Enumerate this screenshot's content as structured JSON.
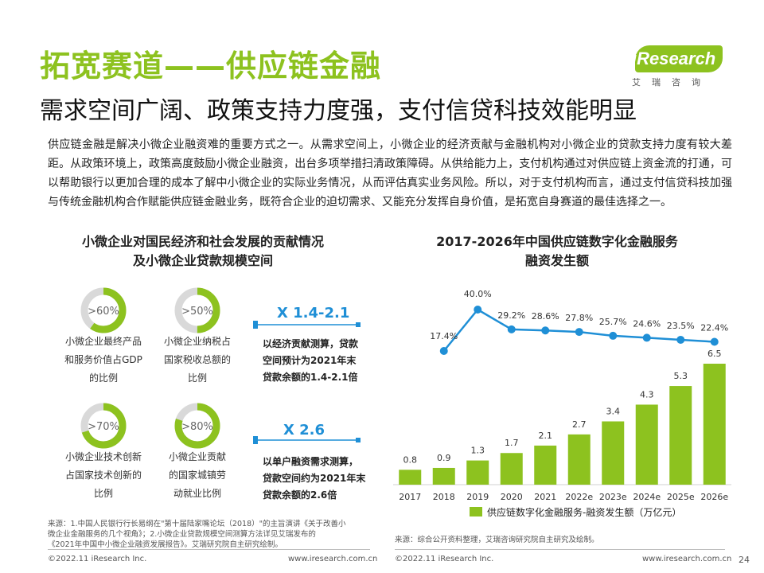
{
  "header": {
    "title": "拓宽赛道——供应链金融",
    "subtitle": "需求空间广阔、政策支持力度强，支付信贷科技效能明显",
    "logo_en": "iResearch",
    "logo_cn": "艾瑞咨询"
  },
  "intro": "供应链金融是解决小微企业融资难的重要方式之一。从需求空间上，小微企业的经济贡献与金融机构对小微企业的贷款支持力度有较大差距。从政策环境上，政策高度鼓励小微企业融资，出台多项举措扫清政策障碍。从供给能力上，支付机构通过对供应链上资金流的打通，可以帮助银行以更加合理的成本了解中小微企业的实际业务情况，从而评估真实业务风险。所以，对于支付机构而言，通过支付信贷科技加强与传统金融机构合作赋能供应链金融业务，既符合企业的迫切需求、又能充分发挥自身价值，是拓宽自身赛道的最佳选择之一。",
  "left": {
    "title_line1": "小微企业对国民经济和社会发展的贡献情况",
    "title_line2": "及小微企业贷款规模空间",
    "stats": [
      {
        "value": ">60%",
        "fraction": 0.6,
        "caption": [
          "小微企业最终产品",
          "和服务价值占GDP",
          "的比例"
        ]
      },
      {
        "value": ">50%",
        "fraction": 0.5,
        "caption": [
          "小微企业纳税占",
          "国家税收总额的",
          "比例"
        ]
      },
      {
        "value": ">70%",
        "fraction": 0.7,
        "caption": [
          "小微企业技术创新",
          "占国家技术创新的",
          "比例"
        ]
      },
      {
        "value": ">80%",
        "fraction": 0.8,
        "caption": [
          "小微企业贡献",
          "的国家城镇劳",
          "动就业比例"
        ]
      }
    ],
    "multipliers": [
      {
        "value": "X 1.4-2.1",
        "desc": [
          "以经济贡献测算，贷款",
          "空间预计为2021年末",
          "贷款余额的1.4-2.1倍"
        ]
      },
      {
        "value": "X 2.6",
        "desc": [
          "以单户融资需求测算，",
          "贷款空间约为2021年末",
          "贷款余额的2.6倍"
        ]
      }
    ],
    "source": [
      "来源：1.中国人民银行行长易纲在\"第十届陆家嘴论坛（2018）\"的主旨演讲《关于改善小",
      "微企业金融服务的几个视角》；2.小微企业贷款规模空间测算方法详见艾瑞发布的",
      "《2021年中国中小微企业融资发展报告》。艾瑞研究院自主研究绘制。"
    ]
  },
  "chart_data": {
    "type": "bar",
    "title": "2017-2026年中国供应链数字化金融服务融资发生额",
    "title_line1": "2017-2026年中国供应链数字化金融服务",
    "title_line2": "融资发生额",
    "categories": [
      "2017",
      "2018",
      "2019",
      "2020",
      "2021",
      "2022e",
      "2023e",
      "2024e",
      "2025e",
      "2026e"
    ],
    "series": [
      {
        "name": "供应链数字化金融服务-融资发生额（万亿元）",
        "kind": "bar",
        "values": [
          0.8,
          0.9,
          1.3,
          1.7,
          2.1,
          2.7,
          3.4,
          4.3,
          5.3,
          6.5
        ],
        "labels": [
          "0.8",
          "0.9",
          "1.3",
          "1.7",
          "2.1",
          "2.7",
          "3.4",
          "4.3",
          "5.3",
          "6.5"
        ]
      },
      {
        "name": "增长率",
        "kind": "line",
        "values": [
          null,
          17.4,
          40.0,
          29.2,
          28.6,
          27.8,
          25.7,
          24.6,
          23.5,
          22.4
        ],
        "labels": [
          "",
          "17.4%",
          "40.0%",
          "29.2%",
          "28.6%",
          "27.8%",
          "25.7%",
          "24.6%",
          "23.5%",
          "22.4%"
        ]
      }
    ],
    "legend_label": "供应链数字化金融服务-融资发生额（万亿元）",
    "ylim": [
      0,
      7
    ],
    "source": "来源：综合公开资料整理，艾瑞咨询研究院自主研究及绘制。"
  },
  "footer": {
    "left_copyright": "©2022.11 iResearch Inc.",
    "left_url": "www.iresearch.com.cn",
    "right_copyright": "©2022.11 iResearch Inc.",
    "right_url": "www.iresearch.com.cn",
    "page_number": "24"
  },
  "colors": {
    "green": "#8dc21f",
    "grey_ring": "#d9d9d9",
    "line_blue": "#1f8fd6",
    "text_dark": "#222222"
  }
}
